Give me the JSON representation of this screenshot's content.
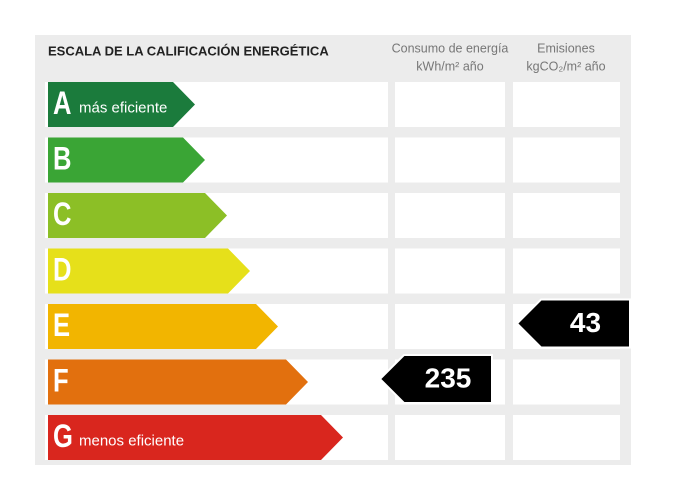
{
  "header": {
    "title": "ESCALA DE LA CALIFICACIÓN ENERGÉTICA",
    "columns": [
      {
        "title": "Consumo de energía",
        "unit": "kWh/m² año"
      },
      {
        "title": "Emisiones",
        "unit": "kgCO₂/m² año"
      }
    ]
  },
  "rows": [
    {
      "letter": "A",
      "label": "más eficiente",
      "color": "#1b7b3c"
    },
    {
      "letter": "B",
      "color": "#3aa535"
    },
    {
      "letter": "C",
      "color": "#8cbf26"
    },
    {
      "letter": "D",
      "color": "#e6e01a"
    },
    {
      "letter": "E",
      "color": "#f2b500",
      "emissions": 43
    },
    {
      "letter": "F",
      "color": "#e2700e",
      "consumption": 235
    },
    {
      "letter": "G",
      "label": "menos eficiente",
      "color": "#d9261e"
    }
  ]
}
